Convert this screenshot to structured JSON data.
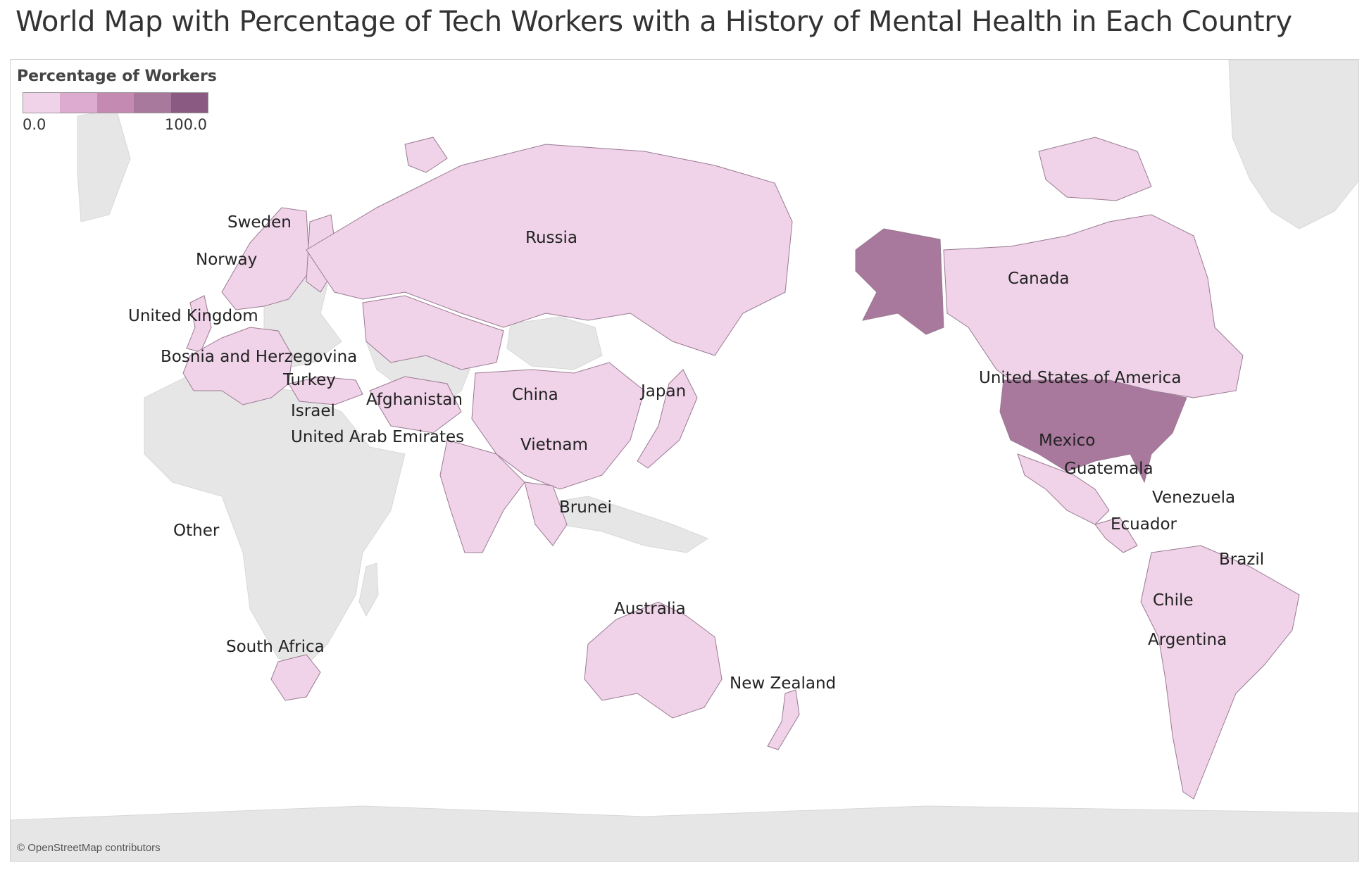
{
  "title": "World Map with Percentage of Tech Workers with a History of Mental Health in Each Country",
  "legend": {
    "title": "Percentage of Workers",
    "min_label": "0.0",
    "max_label": "100.0",
    "steps": [
      "#f0d3e9",
      "#ddabd0",
      "#c58ab2",
      "#a8789d",
      "#8a5a82"
    ]
  },
  "colors": {
    "no_data": "#e6e6e6",
    "low": "#f0d3e9",
    "high": "#a8789d",
    "water": "#ffffff",
    "border": "#9a7a92"
  },
  "countries": [
    {
      "name": "Sweden",
      "shade": "low"
    },
    {
      "name": "Norway",
      "shade": "low"
    },
    {
      "name": "United Kingdom",
      "shade": "low"
    },
    {
      "name": "Bosnia and Herzegovina",
      "shade": "low"
    },
    {
      "name": "Turkey",
      "shade": "low"
    },
    {
      "name": "Israel",
      "shade": "low"
    },
    {
      "name": "Afghanistan",
      "shade": "low"
    },
    {
      "name": "United Arab Emirates",
      "shade": "low"
    },
    {
      "name": "Other",
      "shade": "low"
    },
    {
      "name": "South Africa",
      "shade": "low"
    },
    {
      "name": "Russia",
      "shade": "low"
    },
    {
      "name": "China",
      "shade": "low"
    },
    {
      "name": "Japan",
      "shade": "low"
    },
    {
      "name": "Vietnam",
      "shade": "low"
    },
    {
      "name": "Brunei",
      "shade": "low"
    },
    {
      "name": "Australia",
      "shade": "low"
    },
    {
      "name": "New Zealand",
      "shade": "low"
    },
    {
      "name": "Canada",
      "shade": "low"
    },
    {
      "name": "United States of America",
      "shade": "high"
    },
    {
      "name": "Mexico",
      "shade": "low"
    },
    {
      "name": "Guatemala",
      "shade": "low"
    },
    {
      "name": "Venezuela",
      "shade": "low"
    },
    {
      "name": "Ecuador",
      "shade": "low"
    },
    {
      "name": "Brazil",
      "shade": "low"
    },
    {
      "name": "Chile",
      "shade": "low"
    },
    {
      "name": "Argentina",
      "shade": "low"
    }
  ],
  "attribution": "© OpenStreetMap contributors"
}
